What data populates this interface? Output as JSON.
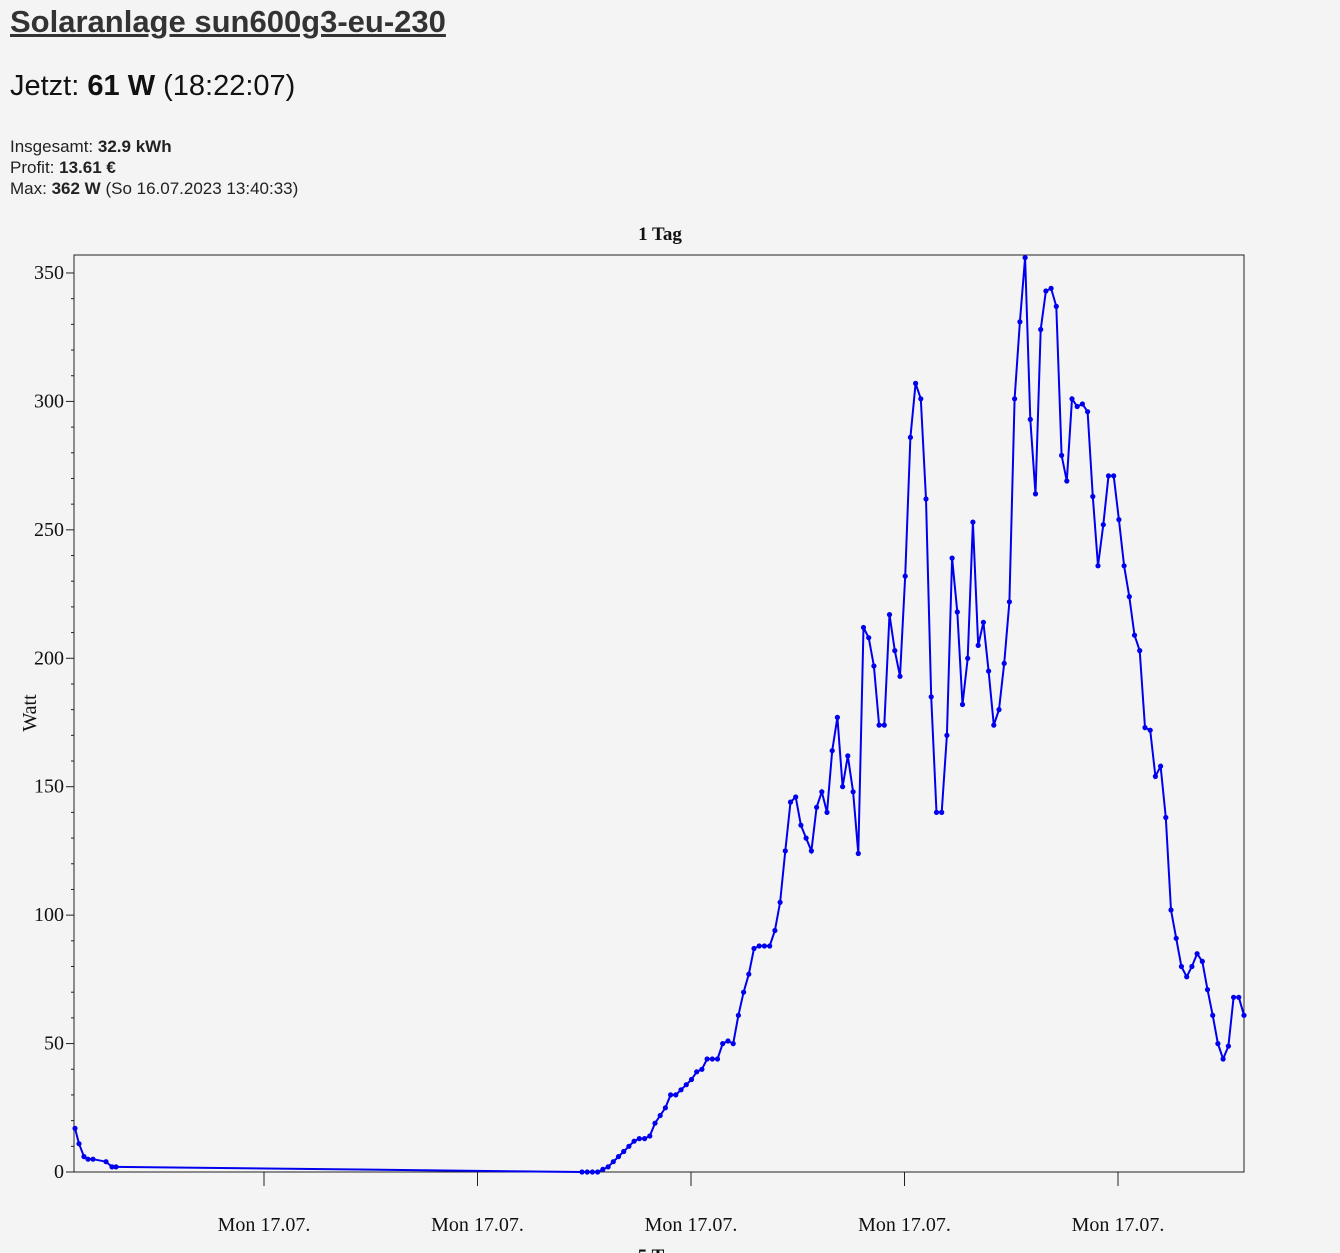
{
  "header": {
    "title": "Solaranlage sun600g3-eu-230",
    "now_label": "Jetzt:",
    "now_value": "61 W",
    "now_time": "(18:22:07)"
  },
  "stats": {
    "total_label": "Insgesamt:",
    "total_value": "32.9 kWh",
    "profit_label": "Profit:",
    "profit_value": "13.61 €",
    "max_label": "Max:",
    "max_value": "362 W",
    "max_time": "(So 16.07.2023 13:40:33)"
  },
  "chart_data": {
    "type": "line",
    "title": "1 Tag",
    "ylabel": "Watt",
    "xlabel": "",
    "ylim": [
      0,
      357
    ],
    "yticks": [
      0,
      50,
      100,
      150,
      200,
      250,
      300,
      350
    ],
    "xtick_labels": [
      "Mon 17.07.",
      "Mon 17.07.",
      "Mon 17.07.",
      "Mon 17.07.",
      "Mon 17.07."
    ],
    "next_chart_title_partial": "5 T",
    "color": "#0000ee",
    "series": [
      {
        "values": [
          17,
          11,
          6,
          5,
          5,
          4,
          2,
          2,
          0,
          0,
          0,
          0,
          1,
          2,
          4,
          6,
          8,
          10,
          12,
          13,
          13,
          14,
          19,
          22,
          25,
          30,
          30,
          32,
          34,
          36,
          39,
          40,
          44,
          44,
          44,
          50,
          51,
          50,
          61,
          70,
          77,
          87,
          88,
          88,
          88,
          94,
          105,
          125,
          144,
          146,
          135,
          130,
          125,
          142,
          148,
          140,
          164,
          177,
          150,
          162,
          148,
          124,
          212,
          208,
          197,
          174,
          174,
          217,
          203,
          193,
          232,
          286,
          307,
          301,
          262,
          185,
          140,
          140,
          170,
          239,
          218,
          182,
          200,
          253,
          205,
          214,
          195,
          174,
          180,
          198,
          222,
          301,
          331,
          356,
          293,
          264,
          328,
          343,
          344,
          337,
          279,
          269,
          301,
          298,
          299,
          296,
          263,
          236,
          252,
          271,
          271,
          254,
          236,
          224,
          209,
          203,
          173,
          172,
          154,
          158,
          138,
          102,
          91,
          80,
          76,
          80,
          85,
          82,
          71,
          61,
          50,
          44,
          49,
          68,
          68,
          61
        ]
      }
    ]
  }
}
